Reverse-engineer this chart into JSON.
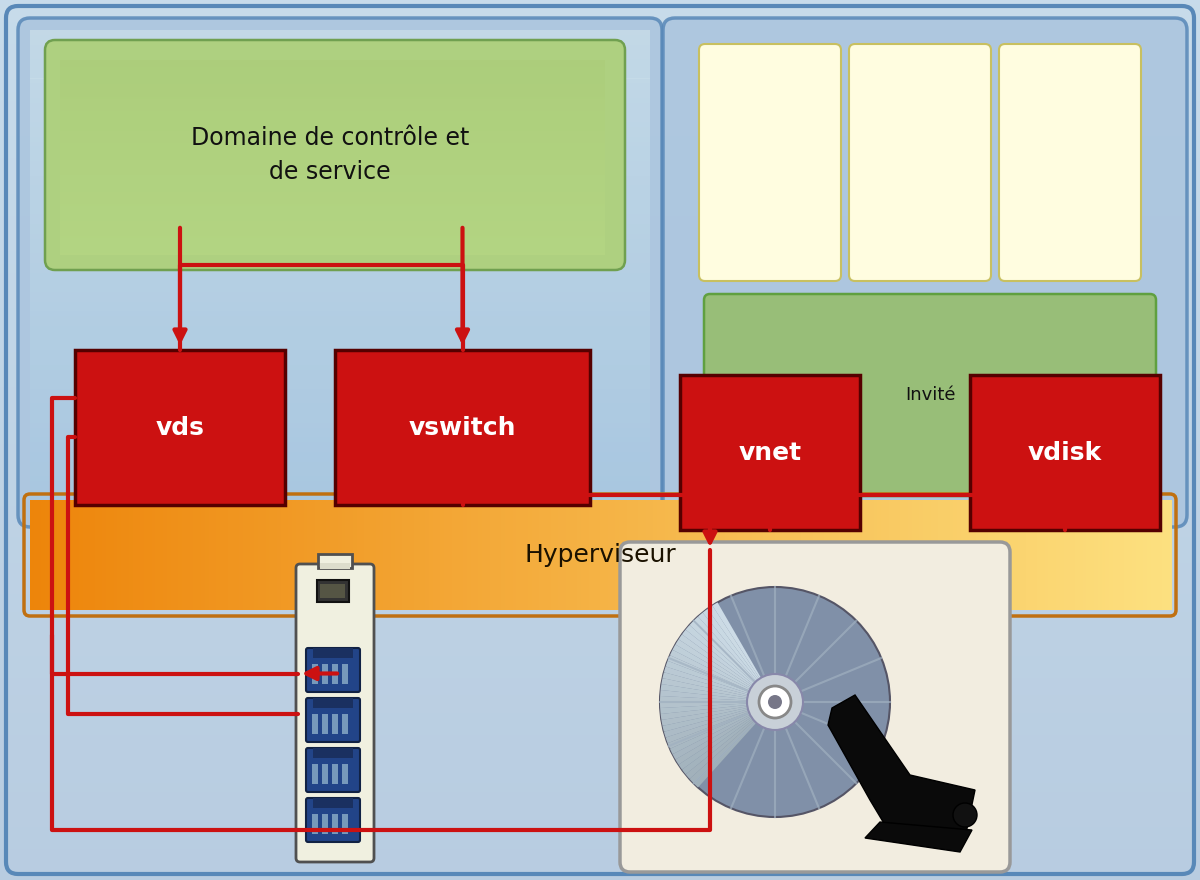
{
  "bg_color": "#c0d4e8",
  "red_color": "#cc1111",
  "arrow_lw": 3.0,
  "ctrl_domain_label": "Domaine de contrôle et\nde service",
  "invite_label": "Invité",
  "hypervisor_label": "Hyperviseur",
  "vds_label": "vds",
  "vswitch_label": "vswitch",
  "vnet_label": "vnet",
  "vdisk_label": "vdisk",
  "outer_fc": "#c8d8ea",
  "outer_ec": "#7099bb",
  "ctrl_fc": "#aac4de",
  "ctrl_ec": "#5888b8",
  "green_lbl_fc": "#aed080",
  "green_lbl_ec": "#70a050",
  "guest_fc": "#aac4de",
  "guest_ec": "#5888b8",
  "cpu_fc": "#fffde0",
  "cpu_ec": "#c8c060",
  "invite_fc": "#98be78",
  "invite_ec": "#60a040",
  "hyp_orange": [
    0.93,
    0.52,
    0.04
  ],
  "hyp_yellow": [
    0.99,
    0.88,
    0.5
  ],
  "hyp_ec": "#c07010",
  "card_fc": "#f0f0e0",
  "card_ec": "#505050",
  "port_fc": "#224488",
  "disc_fc": "#7090b8",
  "disc_bg": "#f2ede0",
  "disc_ec": "#999999"
}
